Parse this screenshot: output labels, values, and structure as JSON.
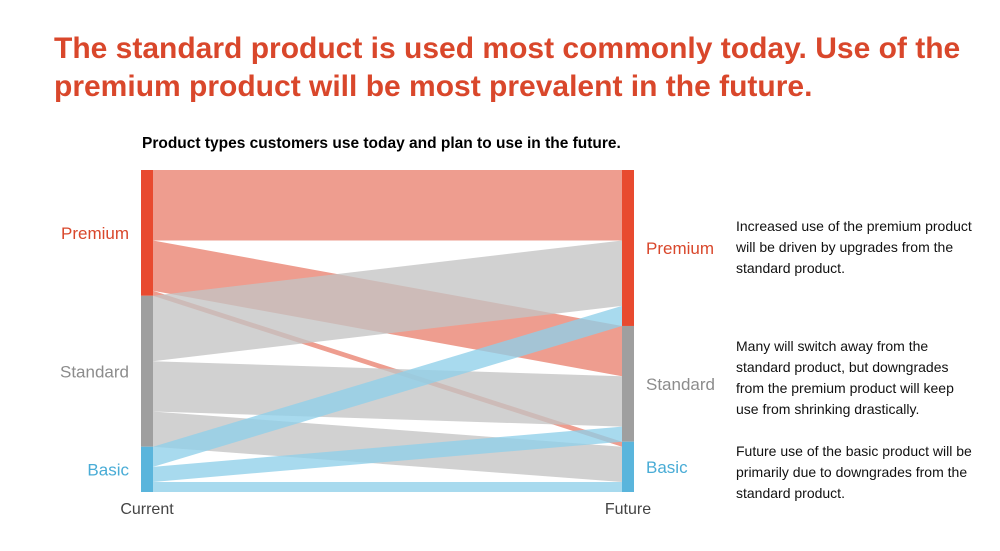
{
  "headline": "The standard product is used most commonly today. Use of the premium product will be most prevalent in the future.",
  "chart_data": {
    "type": "sankey",
    "title": "Product types customers use today and plan to use in the future.",
    "stage_labels": [
      "Current",
      "Future"
    ],
    "categories": [
      {
        "name": "Premium",
        "color": "#e84a2f",
        "flow_color": "#e9826f",
        "label_color": "#d9472b"
      },
      {
        "name": "Standard",
        "color": "#9f9f9f",
        "flow_color": "#c4c4c4",
        "label_color": "#8c8c8c"
      },
      {
        "name": "Basic",
        "color": "#5ab5dc",
        "flow_color": "#8fcfe9",
        "label_color": "#49acd6"
      }
    ],
    "flows": [
      {
        "from": "Premium",
        "to": "Premium",
        "value": 14
      },
      {
        "from": "Premium",
        "to": "Standard",
        "value": 10
      },
      {
        "from": "Premium",
        "to": "Basic",
        "value": 1
      },
      {
        "from": "Standard",
        "to": "Premium",
        "value": 13
      },
      {
        "from": "Standard",
        "to": "Standard",
        "value": 10
      },
      {
        "from": "Standard",
        "to": "Basic",
        "value": 7
      },
      {
        "from": "Basic",
        "to": "Premium",
        "value": 4
      },
      {
        "from": "Basic",
        "to": "Standard",
        "value": 3
      },
      {
        "from": "Basic",
        "to": "Basic",
        "value": 2
      }
    ]
  },
  "notes": [
    "Increased use of the premium product will be driven by upgrades from the standard product.",
    "Many will switch away from the standard product, but downgrades from the premium product will keep use from shrinking drastically.",
    "Future use of the basic product will be primarily due to downgrades from the standard product."
  ]
}
